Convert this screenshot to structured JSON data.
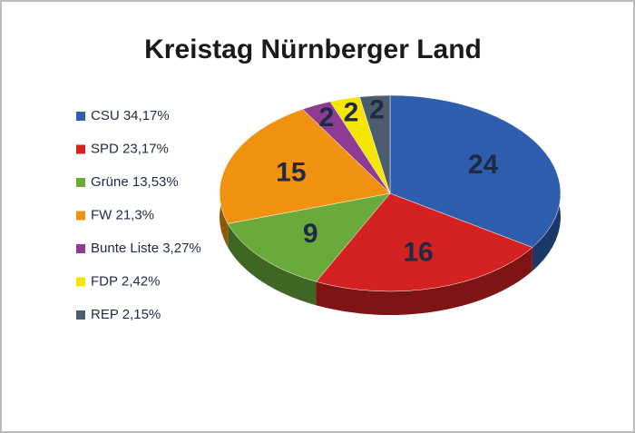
{
  "chart_data": {
    "type": "pie",
    "title": "Kreistag Nürnberger Land",
    "categories": [
      "CSU 34,17%",
      "SPD 23,17%",
      "Grüne 13,53%",
      "FW 21,3%",
      "Bunte Liste 3,27%",
      "FDP 2,42%",
      "REP 2,15%"
    ],
    "values": [
      24,
      16,
      9,
      15,
      2,
      2,
      2
    ],
    "colors": [
      "#2e5ead",
      "#d42121",
      "#6aaa3a",
      "#f0920f",
      "#8e3b94",
      "#f5e600",
      "#4c5e6e"
    ]
  }
}
